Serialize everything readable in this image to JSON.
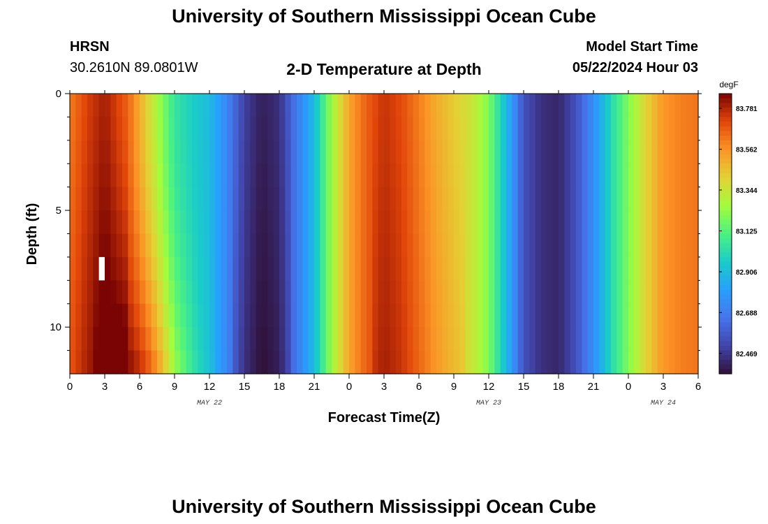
{
  "page": {
    "title_top": "University of Southern Mississippi Ocean Cube",
    "title_bottom": "University of Southern Mississippi Ocean Cube",
    "station": "HRSN",
    "coords": "30.2610N  89.0801W",
    "plot_title": "2-D Temperature at Depth",
    "model_label": "Model Start Time",
    "model_time": "05/22/2024 Hour 03"
  },
  "chart_data": {
    "type": "heatmap",
    "title": "2-D Temperature at Depth",
    "xlabel": "Forecast Time(Z)",
    "ylabel": "Depth (ft)",
    "x_range_hours": [
      0,
      54
    ],
    "x_tick_labels": [
      "0",
      "3",
      "6",
      "9",
      "12",
      "15",
      "18",
      "21",
      "0",
      "3",
      "6",
      "9",
      "12",
      "15",
      "18",
      "21",
      "0",
      "3",
      "6"
    ],
    "date_labels": [
      {
        "label": "MAY 22",
        "hour": 12
      },
      {
        "label": "MAY 23",
        "hour": 36
      },
      {
        "label": "MAY 24",
        "hour": 51
      }
    ],
    "y_range_ft": [
      0,
      12
    ],
    "y_tick_labels": [
      "0",
      "5",
      "10"
    ],
    "y_tick_values": [
      0,
      5,
      10
    ],
    "colorbar": {
      "unit": "degF",
      "labels": [
        "83.781",
        "83.562",
        "83.344",
        "83.125",
        "82.906",
        "82.688",
        "82.469"
      ],
      "values": [
        83.781,
        83.562,
        83.344,
        83.125,
        82.906,
        82.688,
        82.469
      ],
      "range": [
        82.36,
        83.86
      ],
      "colormap": "turbo"
    },
    "missing_cell": {
      "hour": 2.5,
      "depth_ft_range": [
        6.5,
        7.5
      ]
    }
  }
}
